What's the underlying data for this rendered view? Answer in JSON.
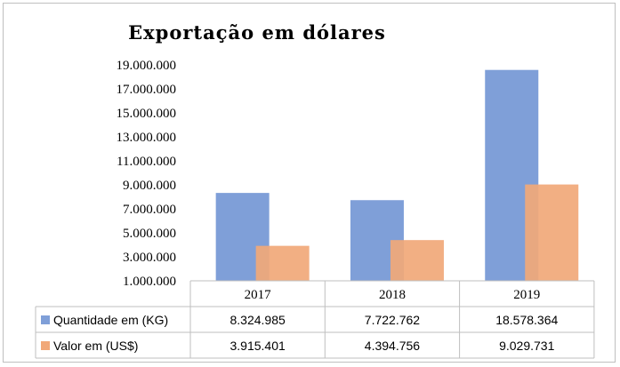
{
  "chart_data": {
    "type": "bar",
    "title": "Exportação em dólares",
    "categories": [
      "2017",
      "2018",
      "2019"
    ],
    "series": [
      {
        "name": "Quantidade em (KG)",
        "color": "#7f9fd8",
        "values": [
          8324985,
          7722762,
          18578364
        ],
        "labels": [
          "8.324.985",
          "7.722.762",
          "18.578.364"
        ]
      },
      {
        "name": "Valor em (US$)",
        "color": "#f1a878",
        "values": [
          3915401,
          4394756,
          9029731
        ],
        "labels": [
          "3.915.401",
          "4.394.756",
          "9.029.731"
        ]
      }
    ],
    "yticks": [
      1000000,
      3000000,
      5000000,
      7000000,
      9000000,
      11000000,
      13000000,
      15000000,
      17000000,
      19000000
    ],
    "ytick_labels": [
      "1.000.000",
      "3.000.000",
      "5.000.000",
      "7.000.000",
      "9.000.000",
      "11.000.000",
      "13.000.000",
      "15.000.000",
      "17.000.000",
      "19.000.000"
    ],
    "ylim": [
      1000000,
      19000000
    ],
    "grid": false,
    "legend": "data-table"
  }
}
